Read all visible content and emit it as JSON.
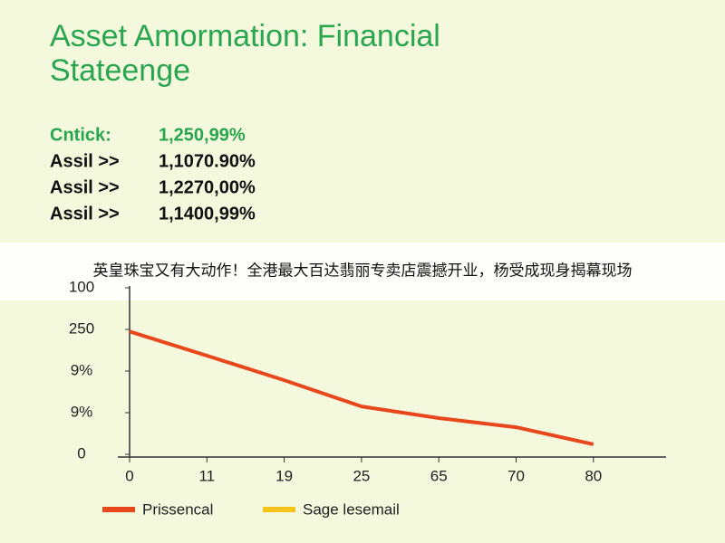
{
  "header": {
    "title_lines": [
      "Asset Amormation: Financial",
      "Stateenge"
    ]
  },
  "stats": {
    "rows": [
      [
        "Cntick:",
        "1,250,99%"
      ],
      [
        "Assil >>",
        "1,1070.90%"
      ],
      [
        "Assil >>",
        "1,2270,00%"
      ],
      [
        "Assil >>",
        "1,1400,99%"
      ]
    ]
  },
  "banner": {
    "text": "英皇珠宝又有大动作！全港最大百达翡丽专卖店震撼开业，杨受成现身揭幕现场"
  },
  "chart_data": {
    "type": "line",
    "categories": [
      "0",
      "11",
      "19",
      "25",
      "65",
      "70",
      "80"
    ],
    "series": [
      {
        "name": "Prissencal",
        "color": "#e8471c",
        "values": [
          295,
          237,
          178,
          115,
          87,
          65,
          24
        ]
      },
      {
        "name": "Sage lesemail",
        "color": "#f7c21a",
        "values": [
          null,
          null,
          null,
          null,
          null,
          null,
          null
        ]
      }
    ],
    "ylim": [
      0,
      400
    ],
    "yticks": [
      0,
      {
        "value": 100,
        "label": "9%"
      },
      {
        "value": 200,
        "label": "9%"
      },
      {
        "value": 300,
        "label": "250"
      },
      {
        "value": 400,
        "label": "100"
      }
    ],
    "grid": false
  }
}
